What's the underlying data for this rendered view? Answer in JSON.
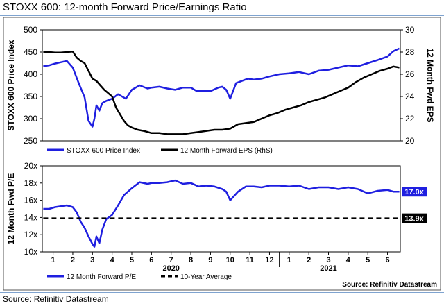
{
  "page": {
    "title": "STOXX 600: 12-month Forward Price/Earnings Ratio",
    "footer_source": "Source: Refinitiv Datastream",
    "chart_source": "Source: Refinitiv Datastream"
  },
  "colors": {
    "blue": "#1f1fe0",
    "black": "#000000",
    "label_bg": "#1f1fe0",
    "frame": "#555555"
  },
  "chart_data": [
    {
      "type": "line",
      "title": "",
      "ylabel": "STOXX 600 Price Index",
      "y2label": "12 Month Fwd EPS",
      "ylim": [
        250,
        500
      ],
      "y2lim": [
        20,
        30
      ],
      "yticks": [
        250,
        300,
        350,
        400,
        450,
        500
      ],
      "y2ticks": [
        20,
        22,
        24,
        26,
        28,
        30
      ],
      "xlim": [
        0.45,
        18.65
      ],
      "legend": {
        "position": "bottom-left",
        "entries": [
          "STOXX 600 Price Index",
          "12 Month Forward EPS (RhS)"
        ]
      },
      "series": [
        {
          "name": "STOXX 600 Price Index",
          "axis": "left",
          "color": "#1f1fe0",
          "x": [
            0.5,
            0.8,
            1.1,
            1.4,
            1.7,
            2.0,
            2.3,
            2.6,
            2.8,
            3.0,
            3.1,
            3.2,
            3.35,
            3.5,
            3.7,
            4.0,
            4.3,
            4.7,
            5.0,
            5.4,
            5.8,
            6.0,
            6.4,
            6.8,
            7.2,
            7.6,
            8.0,
            8.3,
            8.6,
            9.0,
            9.4,
            9.6,
            9.8,
            10.0,
            10.3,
            10.6,
            10.9,
            11.2,
            11.6,
            12.0,
            12.5,
            13.0,
            13.5,
            14.0,
            14.5,
            15.0,
            15.5,
            16.0,
            16.5,
            17.0,
            17.5,
            18.0,
            18.3,
            18.6
          ],
          "y": [
            418,
            420,
            424,
            427,
            430,
            415,
            380,
            348,
            295,
            282,
            300,
            330,
            318,
            335,
            340,
            345,
            355,
            345,
            365,
            375,
            368,
            370,
            372,
            368,
            365,
            370,
            370,
            362,
            362,
            362,
            370,
            372,
            365,
            345,
            380,
            385,
            390,
            388,
            390,
            395,
            400,
            402,
            405,
            400,
            408,
            410,
            415,
            420,
            418,
            425,
            432,
            440,
            452,
            458
          ]
        },
        {
          "name": "12 Month Forward EPS",
          "axis": "right",
          "color": "#000000",
          "x": [
            0.5,
            0.8,
            1.1,
            1.4,
            1.7,
            2.0,
            2.2,
            2.4,
            2.6,
            2.8,
            3.0,
            3.2,
            3.4,
            3.6,
            3.8,
            4.0,
            4.2,
            4.4,
            4.6,
            4.8,
            5.0,
            5.3,
            5.6,
            6.0,
            6.4,
            6.8,
            7.2,
            7.6,
            8.0,
            8.4,
            8.8,
            9.2,
            9.6,
            10.0,
            10.4,
            10.8,
            11.2,
            11.6,
            12.0,
            12.4,
            12.8,
            13.2,
            13.6,
            14.0,
            14.4,
            14.8,
            15.2,
            15.6,
            16.0,
            16.4,
            16.8,
            17.2,
            17.6,
            18.0,
            18.3,
            18.6
          ],
          "y": [
            28.0,
            28.0,
            27.95,
            27.95,
            28.0,
            28.05,
            27.5,
            27.2,
            27.0,
            26.3,
            25.6,
            25.4,
            25.0,
            24.6,
            24.3,
            24.0,
            23.0,
            22.4,
            21.8,
            21.4,
            21.2,
            21.0,
            20.9,
            20.7,
            20.7,
            20.6,
            20.6,
            20.6,
            20.7,
            20.8,
            20.9,
            21.0,
            21.0,
            21.1,
            21.5,
            21.6,
            21.7,
            22.0,
            22.3,
            22.5,
            22.8,
            23.0,
            23.2,
            23.5,
            23.7,
            23.9,
            24.2,
            24.5,
            24.8,
            25.3,
            25.7,
            26.0,
            26.3,
            26.5,
            26.7,
            26.6
          ]
        }
      ]
    },
    {
      "type": "line",
      "title": "",
      "ylabel": "12 Month Fwd P/E",
      "ylim": [
        10,
        20
      ],
      "yticks": [
        10,
        12,
        14,
        16,
        18,
        20
      ],
      "ytick_labels": [
        "10x",
        "12x",
        "14x",
        "16x",
        "18x",
        "20x"
      ],
      "xlim": [
        0.45,
        18.65
      ],
      "xtick_labels": [
        "1",
        "2",
        "3",
        "4",
        "5",
        "6",
        "7",
        "8",
        "9",
        "10",
        "11",
        "12",
        "1",
        "2",
        "3",
        "4",
        "5",
        "6"
      ],
      "x_group_labels": [
        {
          "label": "2020",
          "at": 7.0
        },
        {
          "label": "2021",
          "at": 15.0
        }
      ],
      "legend": {
        "position": "bottom-left",
        "entries": [
          "12 Month Forward P/E",
          "10-Year Average"
        ]
      },
      "series": [
        {
          "name": "12 Month Forward P/E",
          "color": "#1f1fe0",
          "x": [
            0.5,
            0.8,
            1.1,
            1.4,
            1.7,
            2.0,
            2.2,
            2.4,
            2.6,
            2.8,
            3.0,
            3.1,
            3.2,
            3.35,
            3.5,
            3.7,
            4.0,
            4.3,
            4.6,
            5.0,
            5.4,
            5.8,
            6.0,
            6.4,
            6.8,
            7.2,
            7.6,
            8.0,
            8.4,
            8.8,
            9.2,
            9.6,
            9.8,
            10.0,
            10.4,
            10.8,
            11.2,
            11.6,
            12.0,
            12.5,
            13.0,
            13.5,
            14.0,
            14.5,
            15.0,
            15.5,
            16.0,
            16.5,
            17.0,
            17.5,
            18.0,
            18.3,
            18.6
          ],
          "y": [
            15.0,
            15.0,
            15.2,
            15.3,
            15.4,
            15.2,
            14.6,
            13.5,
            12.8,
            11.8,
            10.9,
            10.6,
            11.8,
            11.0,
            12.6,
            13.8,
            14.3,
            15.4,
            16.6,
            17.4,
            18.1,
            17.9,
            18.0,
            18.0,
            18.1,
            18.3,
            17.9,
            18.0,
            17.6,
            17.7,
            17.6,
            17.3,
            17.0,
            16.0,
            17.0,
            17.6,
            17.6,
            17.5,
            17.7,
            17.7,
            17.6,
            17.7,
            17.3,
            17.5,
            17.5,
            17.3,
            17.5,
            17.3,
            16.8,
            17.1,
            17.2,
            17.0,
            17.0
          ]
        },
        {
          "name": "10-Year Average",
          "color": "#000000",
          "style": "dashed",
          "x": [
            0.5,
            18.6
          ],
          "y": [
            13.9,
            13.9
          ]
        }
      ],
      "end_labels": [
        {
          "series": "12 Month Forward P/E",
          "text": "17.0x",
          "value": 17.0
        },
        {
          "series": "10-Year Average",
          "text": "13.9x",
          "value": 13.9
        }
      ]
    }
  ]
}
